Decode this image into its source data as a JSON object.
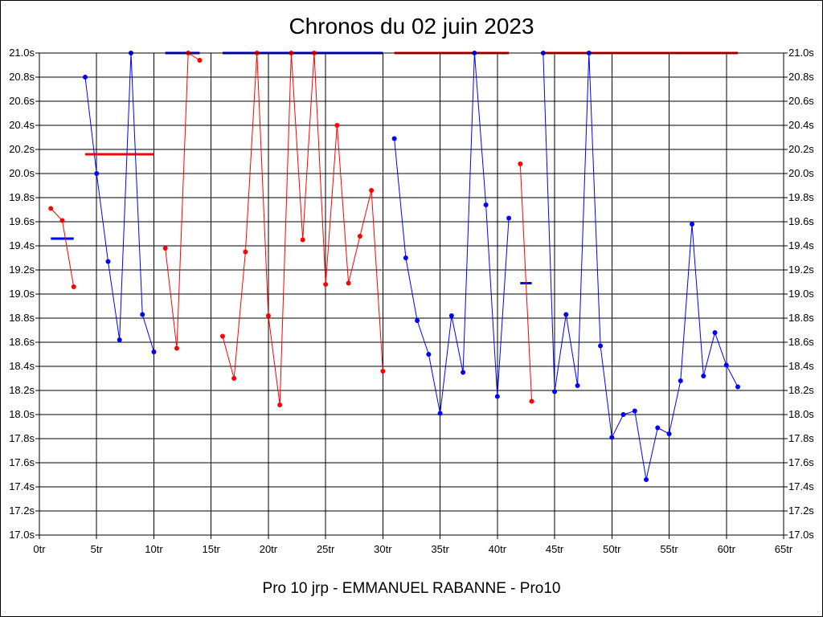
{
  "chart_data": {
    "type": "line",
    "title": "Chronos du 02 juin 2023",
    "footer": "Pro 10 jrp - EMMANUEL RABANNE - Pro10",
    "x_ticks": [
      "0tr",
      "5tr",
      "10tr",
      "15tr",
      "20tr",
      "25tr",
      "30tr",
      "35tr",
      "40tr",
      "45tr",
      "50tr",
      "55tr",
      "60tr",
      "65tr"
    ],
    "y_ticks": [
      "17.0s",
      "17.2s",
      "17.4s",
      "17.6s",
      "17.8s",
      "18.0s",
      "18.2s",
      "18.4s",
      "18.6s",
      "18.8s",
      "19.0s",
      "19.2s",
      "19.4s",
      "19.6s",
      "19.8s",
      "20.0s",
      "20.2s",
      "20.4s",
      "20.6s",
      "20.8s",
      "21.0s"
    ],
    "xlim": [
      0,
      65
    ],
    "ylim": [
      17.0,
      21.0
    ],
    "grid": true,
    "colors": {
      "red": "#ff0000",
      "blue": "#0000ff"
    },
    "series": [
      {
        "color": "red",
        "points": [
          [
            1,
            19.71
          ],
          [
            2,
            19.61
          ],
          [
            3,
            19.06
          ]
        ]
      },
      {
        "color": "blue",
        "points": [
          [
            4,
            20.8
          ],
          [
            5,
            20.0
          ],
          [
            6,
            19.27
          ],
          [
            7,
            18.62
          ],
          [
            8,
            21.0
          ],
          [
            9,
            18.83
          ],
          [
            10,
            18.52
          ]
        ]
      },
      {
        "color": "red",
        "points": [
          [
            11,
            19.38
          ],
          [
            12,
            18.55
          ],
          [
            13,
            21.0
          ],
          [
            14,
            20.94
          ]
        ]
      },
      {
        "color": "red",
        "points": [
          [
            16,
            18.65
          ],
          [
            17,
            18.3
          ],
          [
            18,
            19.35
          ],
          [
            19,
            21.0
          ],
          [
            20,
            18.82
          ],
          [
            21,
            18.08
          ],
          [
            22,
            21.0
          ],
          [
            23,
            19.45
          ],
          [
            24,
            21.0
          ],
          [
            25,
            19.08
          ],
          [
            26,
            20.4
          ],
          [
            27,
            19.09
          ],
          [
            28,
            19.48
          ],
          [
            29,
            19.86
          ],
          [
            30,
            18.36
          ]
        ]
      },
      {
        "color": "blue",
        "points": [
          [
            31,
            20.29
          ],
          [
            32,
            19.3
          ],
          [
            33,
            18.78
          ],
          [
            34,
            18.5
          ],
          [
            35,
            18.01
          ],
          [
            36,
            18.82
          ],
          [
            37,
            18.35
          ],
          [
            38,
            21.0
          ],
          [
            39,
            19.74
          ],
          [
            40,
            18.15
          ],
          [
            41,
            19.63
          ]
        ]
      },
      {
        "color": "red",
        "points": [
          [
            42,
            20.08
          ],
          [
            43,
            18.11
          ]
        ]
      },
      {
        "color": "blue",
        "points": [
          [
            44,
            21.0
          ],
          [
            45,
            18.19
          ],
          [
            46,
            18.83
          ],
          [
            47,
            18.24
          ],
          [
            48,
            21.0
          ],
          [
            49,
            18.57
          ],
          [
            50,
            17.81
          ],
          [
            51,
            18.0
          ],
          [
            52,
            18.03
          ],
          [
            53,
            17.46
          ],
          [
            54,
            17.89
          ],
          [
            55,
            17.84
          ],
          [
            56,
            18.28
          ],
          [
            57,
            19.58
          ],
          [
            58,
            18.32
          ],
          [
            59,
            18.68
          ],
          [
            60,
            18.41
          ],
          [
            61,
            18.23
          ]
        ]
      }
    ],
    "average_lines": [
      {
        "color": "blue",
        "x": [
          1,
          3
        ],
        "y": 19.46
      },
      {
        "color": "red",
        "x": [
          4,
          10
        ],
        "y": 20.16
      },
      {
        "color": "blue",
        "x": [
          11,
          14
        ],
        "y": 21.0
      },
      {
        "color": "blue",
        "x": [
          16,
          30
        ],
        "y": 21.0
      },
      {
        "color": "red",
        "x": [
          31,
          41
        ],
        "y": 21.0
      },
      {
        "color": "blue",
        "x": [
          42,
          43
        ],
        "y": 19.09
      },
      {
        "color": "red",
        "x": [
          44,
          61
        ],
        "y": 21.0
      }
    ]
  }
}
